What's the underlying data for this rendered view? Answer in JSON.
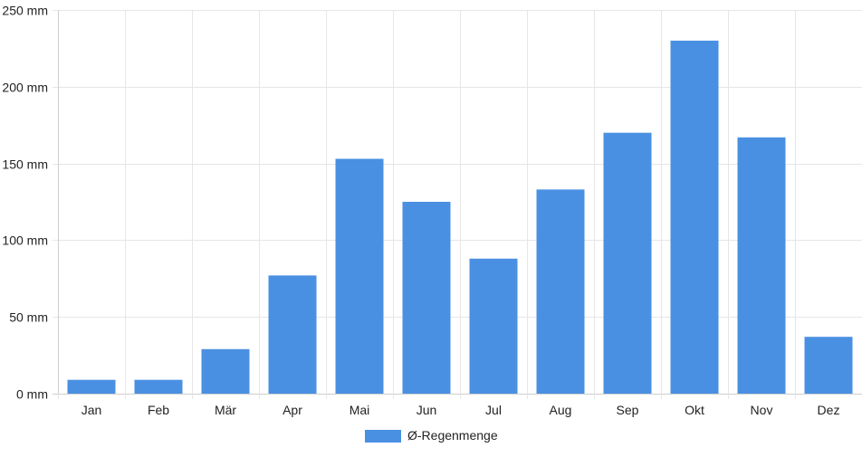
{
  "chart_data": {
    "type": "bar",
    "categories": [
      "Jan",
      "Feb",
      "Mär",
      "Apr",
      "Mai",
      "Jun",
      "Jul",
      "Aug",
      "Sep",
      "Okt",
      "Nov",
      "Dez"
    ],
    "series": [
      {
        "name": "Ø-Regenmenge",
        "values": [
          9,
          9,
          29,
          77,
          153,
          125,
          88,
          133,
          170,
          230,
          167,
          37
        ],
        "color": "#4a90e2"
      }
    ],
    "y_unit": "mm",
    "ylim": [
      0,
      250
    ],
    "y_ticks": [
      "0 mm",
      "50 mm",
      "100 mm",
      "150 mm",
      "200 mm",
      "250 mm"
    ],
    "grid": true,
    "legend_position": "bottom-center"
  },
  "legend": {
    "label": "Ø-Regenmenge",
    "icon": "legend-swatch"
  }
}
